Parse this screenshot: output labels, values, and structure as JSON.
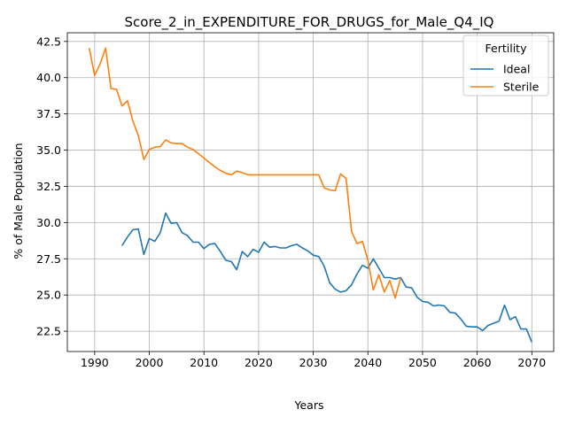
{
  "chart_data": {
    "type": "line",
    "title": "Score_2_in_EXPENDITURE_FOR_DRUGS_for_Male_Q4_IQ",
    "xlabel": "Years",
    "ylabel": "% of Male Population",
    "xlim": [
      1985,
      2074
    ],
    "ylim": [
      21.1,
      43.1
    ],
    "x_ticks": [
      1990,
      2000,
      2010,
      2020,
      2030,
      2040,
      2050,
      2060,
      2070
    ],
    "y_ticks": [
      22.5,
      25.0,
      27.5,
      30.0,
      32.5,
      35.0,
      37.5,
      40.0,
      42.5
    ],
    "x_tick_labels": [
      "1990",
      "2000",
      "2010",
      "2020",
      "2030",
      "2040",
      "2050",
      "2060",
      "2070"
    ],
    "y_tick_labels": [
      "22.5",
      "25.0",
      "27.5",
      "30.0",
      "32.5",
      "35.0",
      "37.5",
      "40.0",
      "42.5"
    ],
    "grid": true,
    "legend": {
      "title": "Fertility",
      "placement": "top-right"
    },
    "series": [
      {
        "name": "Ideal",
        "color": "#1f77b4",
        "x": [
          1995,
          1996,
          1997,
          1998,
          1999,
          2000,
          2001,
          2002,
          2003,
          2004,
          2005,
          2006,
          2007,
          2008,
          2009,
          2010,
          2011,
          2012,
          2013,
          2014,
          2015,
          2016,
          2017,
          2018,
          2019,
          2020,
          2021,
          2022,
          2023,
          2024,
          2025,
          2026,
          2027,
          2028,
          2029,
          2030,
          2031,
          2032,
          2033,
          2034,
          2035,
          2036,
          2037,
          2038,
          2039,
          2040,
          2041,
          2042,
          2043,
          2044,
          2045,
          2046,
          2047,
          2048,
          2049,
          2050,
          2051,
          2052,
          2053,
          2054,
          2055,
          2056,
          2057,
          2058,
          2059,
          2060,
          2061,
          2062,
          2063,
          2064,
          2065,
          2066,
          2067,
          2068,
          2069,
          2070
        ],
        "values": [
          28.4,
          29.0,
          29.5,
          29.55,
          27.8,
          28.9,
          28.7,
          29.3,
          30.65,
          29.95,
          30.0,
          29.3,
          29.1,
          28.65,
          28.65,
          28.2,
          28.5,
          28.55,
          28.0,
          27.4,
          27.3,
          26.75,
          28.0,
          27.65,
          28.15,
          27.95,
          28.65,
          28.3,
          28.35,
          28.25,
          28.25,
          28.4,
          28.5,
          28.25,
          28.05,
          27.75,
          27.65,
          27.0,
          25.85,
          25.4,
          25.2,
          25.3,
          25.7,
          26.45,
          27.05,
          26.85,
          27.5,
          26.85,
          26.2,
          26.2,
          26.1,
          26.2,
          25.55,
          25.5,
          24.85,
          24.55,
          24.5,
          24.25,
          24.3,
          24.25,
          23.8,
          23.75,
          23.35,
          22.85,
          22.8,
          22.8,
          22.55,
          22.9,
          23.05,
          23.2,
          24.3,
          23.3,
          23.5,
          22.65,
          22.65,
          21.75
        ]
      },
      {
        "name": "Sterile",
        "color": "#ff7f0e",
        "x": [
          1989,
          1990,
          1991,
          1992,
          1993,
          1994,
          1995,
          1996,
          1997,
          1998,
          1999,
          2000,
          2001,
          2002,
          2003,
          2004,
          2005,
          2006,
          2007,
          2008,
          2009,
          2010,
          2011,
          2012,
          2013,
          2014,
          2015,
          2016,
          2017,
          2018,
          2019,
          2020,
          2021,
          2022,
          2023,
          2024,
          2025,
          2026,
          2027,
          2028,
          2029,
          2030,
          2031,
          2032,
          2033,
          2034,
          2035,
          2036,
          2037,
          2038,
          2039,
          2040,
          2041,
          2042,
          2043,
          2044,
          2045,
          2046
        ],
        "values": [
          42.05,
          40.15,
          40.95,
          42.05,
          39.25,
          39.2,
          38.05,
          38.4,
          37.0,
          36.0,
          34.35,
          35.05,
          35.2,
          35.25,
          35.7,
          35.5,
          35.45,
          35.45,
          35.2,
          35.05,
          34.75,
          34.45,
          34.15,
          33.85,
          33.6,
          33.4,
          33.3,
          33.55,
          33.45,
          33.3,
          33.3,
          33.3,
          33.3,
          33.3,
          33.3,
          33.3,
          33.3,
          33.3,
          33.3,
          33.3,
          33.3,
          33.3,
          33.3,
          32.4,
          32.25,
          32.2,
          33.35,
          33.05,
          29.4,
          28.55,
          28.7,
          27.4,
          25.35,
          26.4,
          25.2,
          26.0,
          24.8,
          26.2
        ]
      }
    ]
  }
}
